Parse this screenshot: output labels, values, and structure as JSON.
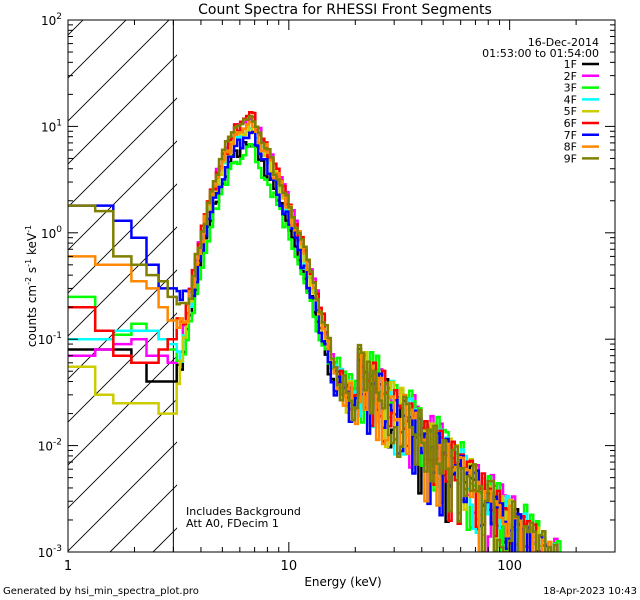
{
  "chart_data": {
    "type": "line",
    "title": "Count Spectra for RHESSI Front Segments",
    "xlabel": "Energy (keV)",
    "ylabel_parts": [
      "counts cm",
      "-2",
      " s",
      "-1",
      " keV",
      "-1"
    ],
    "xscale": "log",
    "yscale": "log",
    "xlim": [
      1,
      300
    ],
    "ylim": [
      0.001,
      100
    ],
    "x_tick_labels": [
      "1",
      "10",
      "100"
    ],
    "y_tick_labels": [
      {
        "base": "10",
        "exp": "-3"
      },
      {
        "base": "10",
        "exp": "-2"
      },
      {
        "base": "10",
        "exp": "-1"
      },
      {
        "base": "10",
        "exp": "0"
      },
      {
        "base": "10",
        "exp": "1"
      },
      {
        "base": "10",
        "exp": "2"
      }
    ],
    "excluded_region_max_keV": 3,
    "date": "16-Dec-2014",
    "time_range": "01:53:00 to 01:54:00",
    "notes": [
      "Includes Background",
      "Att A0, FDecim 1"
    ],
    "footer_left": "Generated by hsi_min_spectra_plot.pro",
    "footer_right": "18-Apr-2023 10:43",
    "series": [
      {
        "name": "1F",
        "color": "#000000",
        "low": [
          0.08,
          0.08,
          0.08,
          0.06,
          0.04,
          0.04,
          0.04,
          0.055
        ],
        "peak": 7.0,
        "tail": 0.045
      },
      {
        "name": "2F",
        "color": "#ff00ff",
        "low": [
          0.07,
          0.08,
          0.09,
          0.1,
          0.07,
          0.07,
          0.06,
          0.055
        ],
        "peak": 12.0,
        "tail": 0.055
      },
      {
        "name": "3F",
        "color": "#00ff00",
        "low": [
          0.25,
          0.12,
          0.11,
          0.14,
          0.12,
          0.1,
          0.08,
          0.07
        ],
        "peak": 6.2,
        "tail": 0.06
      },
      {
        "name": "4F",
        "color": "#00ffff",
        "low": [
          0.1,
          0.1,
          0.12,
          0.12,
          0.12,
          0.1,
          0.09,
          0.07
        ],
        "peak": 10.0,
        "tail": 0.05
      },
      {
        "name": "5F",
        "color": "#cccc00",
        "low": [
          0.055,
          0.03,
          0.025,
          0.025,
          0.025,
          0.02,
          0.02,
          0.018
        ],
        "peak": 10.0,
        "tail": 0.05
      },
      {
        "name": "6F",
        "color": "#ff0000",
        "low": [
          0.2,
          0.12,
          0.07,
          0.06,
          0.06,
          0.08,
          0.1,
          0.15
        ],
        "peak": 12.0,
        "tail": 0.05
      },
      {
        "name": "7F",
        "color": "#0000ff",
        "low": [
          1.8,
          1.8,
          1.3,
          0.9,
          0.5,
          0.3,
          0.3,
          0.25
        ],
        "peak": 8.0,
        "tail": 0.045
      },
      {
        "name": "8F",
        "color": "#ff8800",
        "low": [
          0.6,
          0.5,
          0.5,
          0.35,
          0.3,
          0.2,
          0.15,
          0.15
        ],
        "peak": 11.0,
        "tail": 0.045
      },
      {
        "name": "9F",
        "color": "#808000",
        "low": [
          1.8,
          1.6,
          0.6,
          0.5,
          0.4,
          0.35,
          0.25,
          0.2
        ],
        "peak": 12.0,
        "tail": 0.05
      }
    ]
  }
}
